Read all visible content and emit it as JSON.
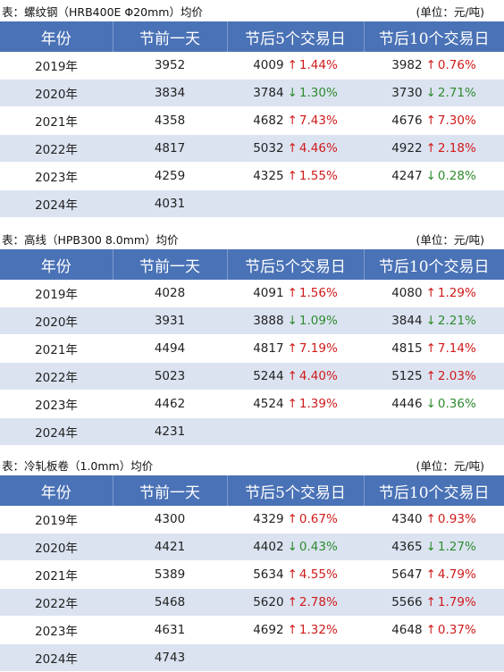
{
  "tables": [
    {
      "title": "表：螺纹钢（HRB400E Φ20mm）均价",
      "unit": "(单位：元/吨)",
      "headers": [
        "年份",
        "节前一天",
        "节后5个交易日",
        "节后10个交易日"
      ],
      "rows": [
        {
          "year": "2019年",
          "pre": "3952",
          "p5": "4009",
          "p5_dir": "up",
          "p5_pct": "1.44%",
          "p10": "3982",
          "p10_dir": "up",
          "p10_pct": "0.76%"
        },
        {
          "year": "2020年",
          "pre": "3834",
          "p5": "3784",
          "p5_dir": "down",
          "p5_pct": "1.30%",
          "p10": "3730",
          "p10_dir": "down",
          "p10_pct": "2.71%"
        },
        {
          "year": "2021年",
          "pre": "4358",
          "p5": "4682",
          "p5_dir": "up",
          "p5_pct": "7.43%",
          "p10": "4676",
          "p10_dir": "up",
          "p10_pct": "7.30%"
        },
        {
          "year": "2022年",
          "pre": "4817",
          "p5": "5032",
          "p5_dir": "up",
          "p5_pct": "4.46%",
          "p10": "4922",
          "p10_dir": "up",
          "p10_pct": "2.18%"
        },
        {
          "year": "2023年",
          "pre": "4259",
          "p5": "4325",
          "p5_dir": "up",
          "p5_pct": "1.55%",
          "p10": "4247",
          "p10_dir": "down",
          "p10_pct": "0.28%"
        },
        {
          "year": "2024年",
          "pre": "4031",
          "p5": "",
          "p5_dir": "",
          "p5_pct": "",
          "p10": "",
          "p10_dir": "",
          "p10_pct": ""
        }
      ]
    },
    {
      "title": "表：高线（HPB300 8.0mm）均价",
      "unit": "(单位：元/吨)",
      "headers": [
        "年份",
        "节前一天",
        "节后5个交易日",
        "节后10个交易日"
      ],
      "rows": [
        {
          "year": "2019年",
          "pre": "4028",
          "p5": "4091",
          "p5_dir": "up",
          "p5_pct": "1.56%",
          "p10": "4080",
          "p10_dir": "up",
          "p10_pct": "1.29%"
        },
        {
          "year": "2020年",
          "pre": "3931",
          "p5": "3888",
          "p5_dir": "down",
          "p5_pct": "1.09%",
          "p10": "3844",
          "p10_dir": "down",
          "p10_pct": "2.21%"
        },
        {
          "year": "2021年",
          "pre": "4494",
          "p5": "4817",
          "p5_dir": "up",
          "p5_pct": "7.19%",
          "p10": "4815",
          "p10_dir": "up",
          "p10_pct": "7.14%"
        },
        {
          "year": "2022年",
          "pre": "5023",
          "p5": "5244",
          "p5_dir": "up",
          "p5_pct": "4.40%",
          "p10": "5125",
          "p10_dir": "up",
          "p10_pct": "2.03%"
        },
        {
          "year": "2023年",
          "pre": "4462",
          "p5": "4524",
          "p5_dir": "up",
          "p5_pct": "1.39%",
          "p10": "4446",
          "p10_dir": "down",
          "p10_pct": "0.36%"
        },
        {
          "year": "2024年",
          "pre": "4231",
          "p5": "",
          "p5_dir": "",
          "p5_pct": "",
          "p10": "",
          "p10_dir": "",
          "p10_pct": ""
        }
      ]
    },
    {
      "title": "表：冷轧板卷（1.0mm）均价",
      "unit": "(单位：元/吨)",
      "headers": [
        "年份",
        "节前一天",
        "节后5个交易日",
        "节后10个交易日"
      ],
      "rows": [
        {
          "year": "2019年",
          "pre": "4300",
          "p5": "4329",
          "p5_dir": "up",
          "p5_pct": "0.67%",
          "p10": "4340",
          "p10_dir": "up",
          "p10_pct": "0.93%"
        },
        {
          "year": "2020年",
          "pre": "4421",
          "p5": "4402",
          "p5_dir": "down",
          "p5_pct": "0.43%",
          "p10": "4365",
          "p10_dir": "down",
          "p10_pct": "1.27%"
        },
        {
          "year": "2021年",
          "pre": "5389",
          "p5": "5634",
          "p5_dir": "up",
          "p5_pct": "4.55%",
          "p10": "5647",
          "p10_dir": "up",
          "p10_pct": "4.79%"
        },
        {
          "year": "2022年",
          "pre": "5468",
          "p5": "5620",
          "p5_dir": "up",
          "p5_pct": "2.78%",
          "p10": "5566",
          "p10_dir": "up",
          "p10_pct": "1.79%"
        },
        {
          "year": "2023年",
          "pre": "4631",
          "p5": "4692",
          "p5_dir": "up",
          "p5_pct": "1.32%",
          "p10": "4648",
          "p10_dir": "up",
          "p10_pct": "0.37%"
        },
        {
          "year": "2024年",
          "pre": "4743",
          "p5": "",
          "p5_dir": "",
          "p5_pct": "",
          "p10": "",
          "p10_dir": "",
          "p10_pct": ""
        }
      ]
    }
  ],
  "arrow_icons": {
    "up": "↑",
    "down": "↓"
  },
  "colors": {
    "header_bg": "#4a72b6",
    "row_alt_bg": "#dbe3f1",
    "up": "#d11a1a",
    "down": "#2e8b2e"
  }
}
